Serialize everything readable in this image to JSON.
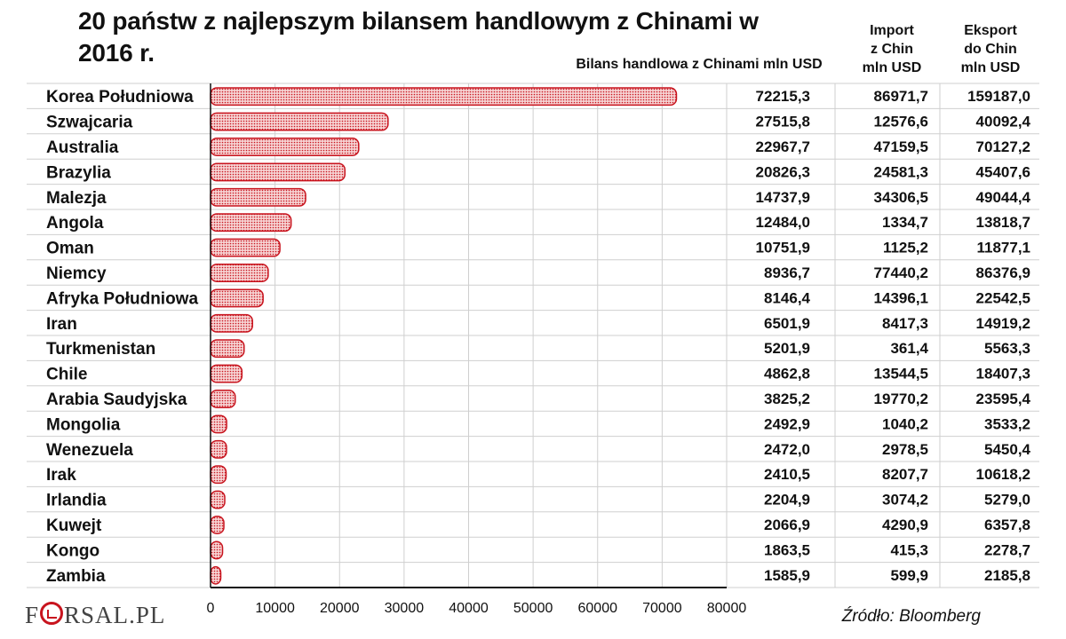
{
  "title": "20 państw z najlepszym bilansem handlowym z Chinami w 2016 r.",
  "columns": {
    "bilans": "Bilans handlowa z Chinami mln USD",
    "import_line1": "Import",
    "import_line2": "z Chin",
    "import_line3": "mln USD",
    "eksport_line1": "Eksport",
    "eksport_line2": "do Chin",
    "eksport_line3": "mln USD"
  },
  "source": "Źródło: Bloomberg",
  "logo": {
    "text_before": "F",
    "text_after": "RSAL",
    "suffix": ".PL",
    "accent": "#c8141e"
  },
  "colors": {
    "bar_fill": "#f3c9c9",
    "bar_stroke": "#c8141e",
    "bar_dot": "#c8141e",
    "grid": "#cfcfcf",
    "axis": "#111111"
  },
  "chart_data": {
    "type": "bar",
    "orientation": "horizontal",
    "title": "20 państw z najlepszym bilansem handlowym z Chinami w 2016 r.",
    "xlabel": "Bilans handlowa z Chinami mln USD",
    "ylabel": "",
    "xlim": [
      0,
      80000
    ],
    "ticks": [
      "0",
      "10000",
      "20000",
      "30000",
      "40000",
      "50000",
      "60000",
      "70000",
      "80000"
    ],
    "tick_values": [
      0,
      10000,
      20000,
      30000,
      40000,
      50000,
      60000,
      70000,
      80000
    ],
    "grid": true,
    "categories": [
      "Korea Południowa",
      "Szwajcaria",
      "Australia",
      "Brazylia",
      "Malezja",
      "Angola",
      "Oman",
      "Niemcy",
      "Afryka Południowa",
      "Iran",
      "Turkmenistan",
      "Chile",
      "Arabia Saudyjska",
      "Mongolia",
      "Wenezuela",
      "Irak",
      "Irlandia",
      "Kuwejt",
      "Kongo",
      "Zambia"
    ],
    "values": [
      72215.3,
      27515.8,
      22967.7,
      20826.3,
      14737.9,
      12484.0,
      10751.9,
      8936.7,
      8146.4,
      6501.9,
      5201.9,
      4862.8,
      3825.2,
      2492.9,
      2472.0,
      2410.5,
      2204.9,
      2066.9,
      1863.5,
      1585.9
    ],
    "values_text": [
      "72215,3",
      "27515,8",
      "22967,7",
      "20826,3",
      "14737,9",
      "12484,0",
      "10751,9",
      "8936,7",
      "8146,4",
      "6501,9",
      "5201,9",
      "4862,8",
      "3825,2",
      "2492,9",
      "2472,0",
      "2410,5",
      "2204,9",
      "2066,9",
      "1863,5",
      "1585,9"
    ],
    "import_text": [
      "86971,7",
      "12576,6",
      "47159,5",
      "24581,3",
      "34306,5",
      "1334,7",
      "1125,2",
      "77440,2",
      "14396,1",
      "8417,3",
      "361,4",
      "13544,5",
      "19770,2",
      "1040,2",
      "2978,5",
      "8207,7",
      "3074,2",
      "4290,9",
      "415,3",
      "599,9"
    ],
    "eksport_text": [
      "159187,0",
      "40092,4",
      "70127,2",
      "45407,6",
      "49044,4",
      "13818,7",
      "11877,1",
      "86376,9",
      "22542,5",
      "14919,2",
      "5563,3",
      "18407,3",
      "23595,4",
      "3533,2",
      "5450,4",
      "10618,2",
      "5279,0",
      "6357,8",
      "2278,7",
      "2185,8"
    ]
  }
}
